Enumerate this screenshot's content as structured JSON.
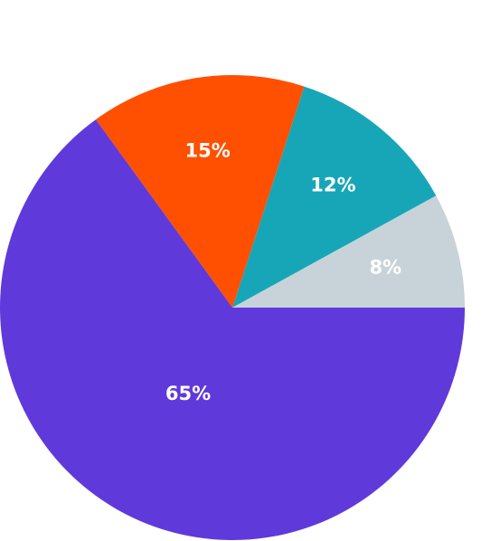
{
  "chart_data": {
    "type": "pie",
    "values": [
      8,
      12,
      15,
      65
    ],
    "value_labels": [
      "8%",
      "12%",
      "15%",
      "65%"
    ],
    "colors": [
      "#c8d3d9",
      "#17a6b7",
      "#fe5000",
      "#6039db"
    ]
  }
}
